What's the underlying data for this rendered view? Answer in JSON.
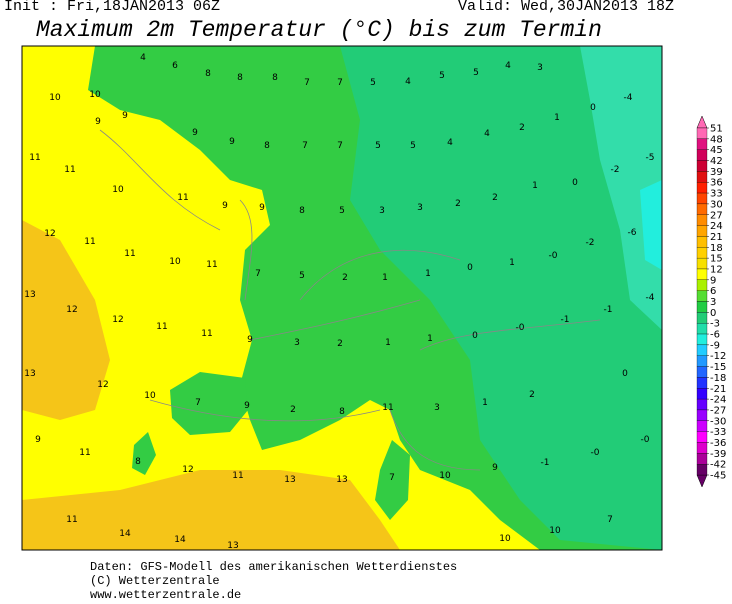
{
  "header": {
    "init": "Init : Fri,18JAN2013 06Z",
    "valid": "Valid: Wed,30JAN2013 18Z",
    "title": "Maximum 2m Temperatur (°C) bis zum Termin"
  },
  "map": {
    "labels": [
      "4",
      "6",
      "8",
      "8",
      "8",
      "7",
      "7",
      "5",
      "4",
      "5",
      "5",
      "4",
      "3",
      "-4",
      "10",
      "10",
      "9",
      "9",
      "0",
      "1",
      "2",
      "4",
      "9",
      "9",
      "8",
      "7",
      "7",
      "5",
      "5",
      "4",
      "-5",
      "-2",
      "0",
      "1",
      "2",
      "2",
      "3",
      "3",
      "5",
      "8",
      "9",
      "9",
      "11",
      "11",
      "10",
      "11",
      "12",
      "11",
      "11",
      "10",
      "11",
      "-6",
      "-2",
      "-0",
      "1",
      "0",
      "1",
      "1",
      "2",
      "5",
      "7",
      "13",
      "12",
      "12",
      "11",
      "11",
      "9",
      "3",
      "2",
      "1",
      "1",
      "0",
      "-0",
      "-1",
      "-1",
      "-4",
      "13",
      "12",
      "10",
      "7",
      "9",
      "2",
      "8",
      "11",
      "3",
      "1",
      "2",
      "0",
      "9",
      "11",
      "8",
      "12",
      "11",
      "13",
      "13",
      "7",
      "10",
      "9",
      "-1",
      "-0",
      "-0",
      "11",
      "14",
      "14",
      "13",
      "10",
      "10",
      "7"
    ]
  },
  "colorbar": {
    "ticks": [
      51,
      48,
      45,
      42,
      39,
      36,
      33,
      30,
      27,
      24,
      21,
      18,
      15,
      12,
      9,
      6,
      3,
      0,
      -3,
      -6,
      -9,
      -12,
      -15,
      -18,
      -21,
      -24,
      -27,
      -30,
      -33,
      -36,
      -39,
      -42,
      -45
    ],
    "colors": [
      "#ff69b4",
      "#e0117f",
      "#d0005a",
      "#cc0033",
      "#e01010",
      "#ff2000",
      "#ff4500",
      "#ff6a00",
      "#ff8c00",
      "#ffa500",
      "#ffbf00",
      "#ffd000",
      "#f7e000",
      "#ffff00",
      "#aaf000",
      "#55dd33",
      "#22cc44",
      "#22cc77",
      "#22ddaa",
      "#22eedd",
      "#22ccff",
      "#2299ff",
      "#2266ff",
      "#2233ff",
      "#3300ff",
      "#6600ff",
      "#9900ff",
      "#cc00ff",
      "#ff00ff",
      "#dd00cc",
      "#aa0099",
      "#660066"
    ]
  },
  "footer": {
    "lines": [
      "Daten: GFS-Modell des amerikanischen Wetterdienstes",
      "(C) Wetterzentrale",
      "www.wetterzentrale.de"
    ]
  }
}
